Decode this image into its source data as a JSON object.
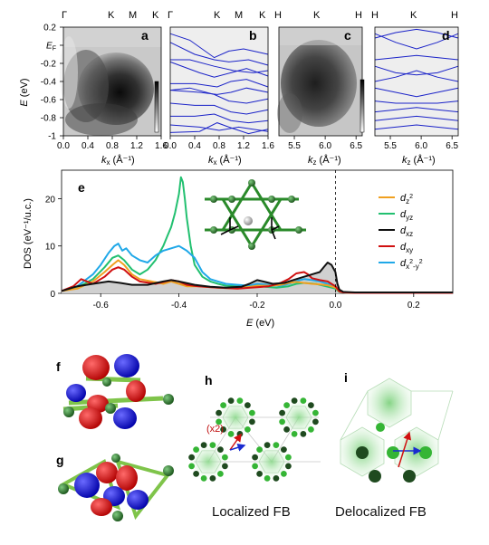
{
  "panels": {
    "a": {
      "letter": "a",
      "top_ticks": [
        "Γ",
        "K",
        "M",
        "K"
      ],
      "xlabel": "k",
      "xlabel_sub": "x",
      "xunit": " (Å⁻¹)",
      "xticks": [
        "0.0",
        "0.4",
        "0.8",
        "1.2",
        "1.6"
      ]
    },
    "b": {
      "letter": "b",
      "top_ticks": [
        "Γ",
        "K",
        "M",
        "K"
      ],
      "xlabel": "k",
      "xlabel_sub": "x",
      "xunit": " (Å⁻¹)",
      "xticks": [
        "0.0",
        "0.4",
        "0.8",
        "1.2",
        "1.6"
      ]
    },
    "c": {
      "letter": "c",
      "top_ticks": [
        "H",
        "K",
        "H"
      ],
      "xlabel": "k",
      "xlabel_sub": "z",
      "xunit": " (Å⁻¹)",
      "xticks": [
        "5.5",
        "6.0",
        "6.5"
      ]
    },
    "d": {
      "letter": "d",
      "top_ticks": [
        "H",
        "K",
        "H"
      ],
      "xlabel": "k",
      "xlabel_sub": "z",
      "xunit": " (Å⁻¹)",
      "xticks": [
        "5.5",
        "6.0",
        "6.5"
      ]
    },
    "e": {
      "letter": "e"
    },
    "f": {
      "letter": "f"
    },
    "g": {
      "letter": "g"
    },
    "h": {
      "letter": "h",
      "annotation": "(x2)",
      "caption": "Localized FB"
    },
    "i": {
      "letter": "i",
      "caption": "Delocalized FB"
    }
  },
  "arpes_axis": {
    "ylabel_italic": "E",
    "ylabel_unit": " (eV)",
    "yticks": [
      "0.2",
      "E_F",
      "-0.2",
      "-0.4",
      "-0.6",
      "-0.8",
      "-1"
    ]
  },
  "chart_data": [
    {
      "type": "line",
      "panel": "e",
      "xlabel_italic": "E",
      "xlabel_unit": " (eV)",
      "ylabel": "DOS (eV⁻¹/u.c.)",
      "xlim": [
        -0.7,
        0.3
      ],
      "ylim": [
        0,
        26
      ],
      "xticks": [
        "-0.6",
        "-0.4",
        "-0.2",
        "0.0",
        "0.2"
      ],
      "yticks": [
        "0",
        "10",
        "20"
      ],
      "fermi_level_dashed": 0.0,
      "legend_position": "right",
      "series": [
        {
          "name": "d_z²",
          "label_main": "d",
          "label_sub": "z",
          "label_sup": "2",
          "color": "#f0a020",
          "x": [
            -0.7,
            -0.66,
            -0.62,
            -0.59,
            -0.57,
            -0.555,
            -0.54,
            -0.52,
            -0.5,
            -0.47,
            -0.44,
            -0.42,
            -0.4,
            -0.38,
            -0.35,
            -0.3,
            -0.25,
            -0.2,
            -0.17,
            -0.14,
            -0.12,
            -0.1,
            -0.08,
            -0.06,
            -0.04,
            -0.02,
            0.0,
            0.01,
            0.02,
            0.05,
            0.1,
            0.2,
            0.3
          ],
          "y": [
            0.5,
            1.0,
            2.5,
            4.5,
            6.0,
            7.0,
            6.0,
            4.0,
            3.0,
            2.5,
            2.0,
            2.5,
            2.0,
            1.5,
            1.5,
            1.2,
            1.0,
            1.6,
            1.6,
            1.8,
            2.2,
            2.4,
            2.2,
            2.0,
            1.9,
            1.7,
            1.2,
            0.4,
            0.2,
            0.1,
            0.1,
            0.1,
            0.1
          ]
        },
        {
          "name": "d_yz",
          "label_main": "d",
          "label_sub": "yz",
          "label_sup": "",
          "color": "#22c070",
          "x": [
            -0.7,
            -0.66,
            -0.62,
            -0.59,
            -0.57,
            -0.555,
            -0.54,
            -0.52,
            -0.5,
            -0.48,
            -0.46,
            -0.44,
            -0.43,
            -0.42,
            -0.41,
            -0.4,
            -0.395,
            -0.39,
            -0.385,
            -0.38,
            -0.37,
            -0.36,
            -0.34,
            -0.32,
            -0.3,
            -0.28,
            -0.25,
            -0.22,
            -0.2,
            -0.18,
            -0.15,
            -0.12,
            -0.1,
            -0.08,
            -0.05,
            -0.02,
            0.0,
            0.01,
            0.02,
            0.05,
            0.1,
            0.2,
            0.3
          ],
          "y": [
            0.5,
            1.2,
            3.0,
            5.5,
            7.5,
            8.0,
            7.0,
            5.0,
            4.0,
            5.0,
            7.0,
            10.0,
            12.0,
            14.0,
            17.0,
            21.0,
            24.5,
            23.5,
            20.0,
            16.0,
            10.0,
            6.0,
            3.5,
            2.5,
            2.0,
            1.6,
            1.5,
            1.5,
            1.8,
            1.4,
            1.2,
            1.5,
            2.0,
            2.2,
            2.0,
            1.4,
            1.0,
            0.3,
            0.2,
            0.1,
            0.1,
            0.1,
            0.1
          ]
        },
        {
          "name": "d_xz",
          "label_main": "d",
          "label_sub": "xz",
          "label_sup": "",
          "color": "#111111",
          "x": [
            -0.7,
            -0.66,
            -0.62,
            -0.58,
            -0.55,
            -0.52,
            -0.48,
            -0.44,
            -0.42,
            -0.4,
            -0.36,
            -0.32,
            -0.28,
            -0.24,
            -0.22,
            -0.2,
            -0.18,
            -0.16,
            -0.13,
            -0.1,
            -0.08,
            -0.06,
            -0.04,
            -0.03,
            -0.02,
            -0.01,
            0.0,
            0.005,
            0.01,
            0.02,
            0.05,
            0.1,
            0.2,
            0.3
          ],
          "y": [
            0.5,
            1.5,
            2.0,
            2.5,
            2.2,
            1.8,
            1.8,
            2.5,
            2.8,
            2.5,
            1.8,
            1.4,
            1.2,
            1.4,
            2.0,
            2.8,
            2.4,
            2.0,
            2.2,
            3.0,
            3.5,
            4.0,
            4.5,
            5.5,
            6.5,
            6.0,
            4.5,
            2.0,
            0.8,
            0.3,
            0.2,
            0.2,
            0.2,
            0.2
          ]
        },
        {
          "name": "d_xy",
          "label_main": "d",
          "label_sub": "xy",
          "label_sup": "",
          "color": "#d01010",
          "x": [
            -0.7,
            -0.67,
            -0.65,
            -0.62,
            -0.59,
            -0.57,
            -0.555,
            -0.54,
            -0.52,
            -0.5,
            -0.46,
            -0.42,
            -0.4,
            -0.38,
            -0.35,
            -0.3,
            -0.25,
            -0.2,
            -0.17,
            -0.14,
            -0.12,
            -0.1,
            -0.08,
            -0.07,
            -0.06,
            -0.04,
            -0.02,
            0.0,
            0.01,
            0.02,
            0.05,
            0.1,
            0.2,
            0.3
          ],
          "y": [
            0.5,
            1.5,
            3.0,
            2.0,
            3.5,
            5.0,
            5.5,
            5.0,
            3.5,
            2.5,
            2.0,
            2.8,
            2.5,
            1.8,
            1.5,
            1.2,
            1.0,
            1.3,
            1.5,
            2.2,
            3.0,
            4.2,
            4.5,
            4.0,
            3.2,
            2.8,
            2.5,
            1.5,
            0.4,
            0.2,
            0.1,
            0.1,
            0.1,
            0.1
          ]
        },
        {
          "name": "d_x²-y²",
          "label_main": "d",
          "label_sub": "x",
          "label_sup": "2",
          "label_sub2": "-y",
          "label_sup2": "2",
          "color": "#20a8e8",
          "x": [
            -0.7,
            -0.66,
            -0.62,
            -0.6,
            -0.58,
            -0.565,
            -0.555,
            -0.545,
            -0.535,
            -0.52,
            -0.5,
            -0.48,
            -0.46,
            -0.44,
            -0.42,
            -0.4,
            -0.38,
            -0.36,
            -0.34,
            -0.32,
            -0.3,
            -0.28,
            -0.25,
            -0.22,
            -0.2,
            -0.17,
            -0.14,
            -0.12,
            -0.1,
            -0.08,
            -0.06,
            -0.04,
            -0.02,
            0.0,
            0.01,
            0.02,
            0.05,
            0.1,
            0.2,
            0.3
          ],
          "y": [
            0.5,
            1.5,
            4.0,
            6.0,
            8.5,
            10.0,
            10.5,
            9.0,
            9.5,
            8.0,
            7.0,
            6.5,
            8.0,
            9.0,
            9.5,
            10.0,
            9.0,
            7.5,
            4.5,
            3.0,
            2.5,
            2.0,
            1.8,
            1.6,
            2.0,
            1.8,
            1.6,
            2.0,
            2.6,
            3.0,
            2.8,
            2.5,
            2.0,
            1.5,
            0.5,
            0.2,
            0.1,
            0.1,
            0.1,
            0.1
          ]
        }
      ]
    }
  ]
}
